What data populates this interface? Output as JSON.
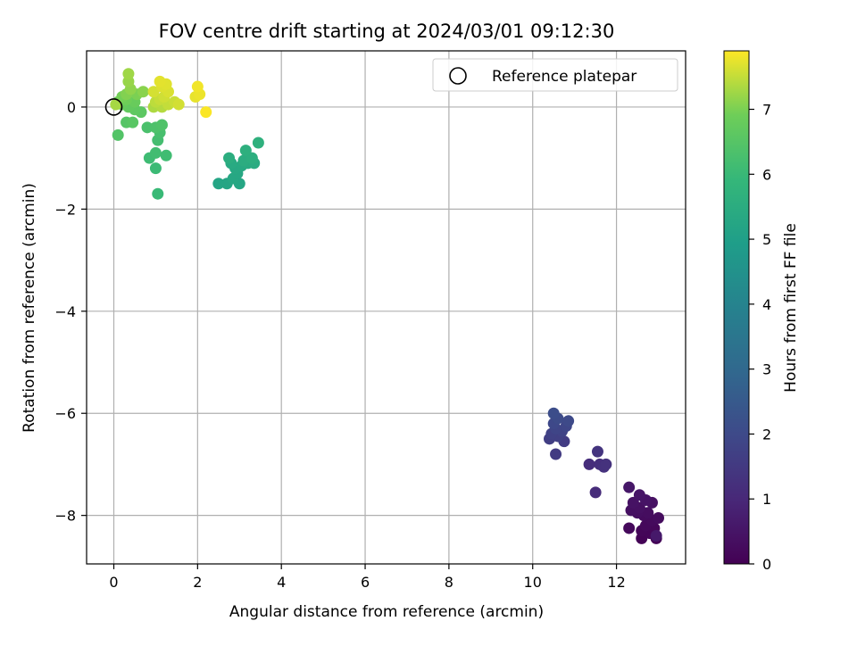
{
  "chart_data": {
    "type": "scatter",
    "title": "FOV centre drift starting at 2024/03/01 09:12:30",
    "xlabel": "Angular distance from reference (arcmin)",
    "ylabel": "Rotation from reference (arcmin)",
    "xlim": [
      -0.65,
      13.65
    ],
    "ylim": [
      -8.95,
      1.1
    ],
    "xticks": [
      0,
      2,
      4,
      6,
      8,
      10,
      12
    ],
    "yticks": [
      0,
      -2,
      -4,
      -6,
      -8
    ],
    "grid": true,
    "legend": {
      "placement": "top-right",
      "entries": [
        "Reference platepar"
      ]
    },
    "reference_point": {
      "x": 0,
      "y": 0,
      "label": "Reference platepar"
    },
    "colorbar": {
      "label": "Hours from first FF file",
      "range": [
        0,
        7.9
      ],
      "ticks": [
        0,
        1,
        2,
        3,
        4,
        5,
        6,
        7
      ],
      "colormap": "viridis"
    },
    "points": [
      {
        "x": 12.6,
        "y": -8.45,
        "h": 0.05
      },
      {
        "x": 12.95,
        "y": -8.45,
        "h": 0.08
      },
      {
        "x": 12.8,
        "y": -8.35,
        "h": 0.1
      },
      {
        "x": 12.6,
        "y": -8.3,
        "h": 0.12
      },
      {
        "x": 12.9,
        "y": -8.25,
        "h": 0.15
      },
      {
        "x": 12.7,
        "y": -8.2,
        "h": 0.18
      },
      {
        "x": 12.3,
        "y": -8.25,
        "h": 0.2
      },
      {
        "x": 12.85,
        "y": -8.1,
        "h": 0.22
      },
      {
        "x": 12.65,
        "y": -8.0,
        "h": 0.25
      },
      {
        "x": 13.0,
        "y": -8.05,
        "h": 0.28
      },
      {
        "x": 12.75,
        "y": -7.95,
        "h": 0.3
      },
      {
        "x": 12.5,
        "y": -7.95,
        "h": 0.33
      },
      {
        "x": 12.35,
        "y": -7.9,
        "h": 0.35
      },
      {
        "x": 12.55,
        "y": -7.85,
        "h": 0.38
      },
      {
        "x": 12.85,
        "y": -7.75,
        "h": 0.4
      },
      {
        "x": 12.4,
        "y": -7.75,
        "h": 0.43
      },
      {
        "x": 12.7,
        "y": -7.7,
        "h": 0.46
      },
      {
        "x": 12.55,
        "y": -7.6,
        "h": 0.5
      },
      {
        "x": 12.3,
        "y": -7.45,
        "h": 0.55
      },
      {
        "x": 12.95,
        "y": -8.4,
        "h": 0.6
      },
      {
        "x": 11.5,
        "y": -7.55,
        "h": 1.1
      },
      {
        "x": 11.35,
        "y": -7.0,
        "h": 1.15
      },
      {
        "x": 11.6,
        "y": -7.0,
        "h": 1.2
      },
      {
        "x": 11.7,
        "y": -7.05,
        "h": 1.25
      },
      {
        "x": 11.75,
        "y": -7.0,
        "h": 1.3
      },
      {
        "x": 11.55,
        "y": -6.75,
        "h": 1.35
      },
      {
        "x": 10.55,
        "y": -6.8,
        "h": 1.55
      },
      {
        "x": 10.75,
        "y": -6.55,
        "h": 1.6
      },
      {
        "x": 10.4,
        "y": -6.5,
        "h": 1.65
      },
      {
        "x": 10.6,
        "y": -6.45,
        "h": 1.7
      },
      {
        "x": 10.45,
        "y": -6.4,
        "h": 1.75
      },
      {
        "x": 10.7,
        "y": -6.35,
        "h": 1.8
      },
      {
        "x": 10.55,
        "y": -6.3,
        "h": 1.85
      },
      {
        "x": 10.8,
        "y": -6.25,
        "h": 1.9
      },
      {
        "x": 10.5,
        "y": -6.2,
        "h": 1.95
      },
      {
        "x": 10.85,
        "y": -6.15,
        "h": 2.0
      },
      {
        "x": 10.6,
        "y": -6.1,
        "h": 2.05
      },
      {
        "x": 10.5,
        "y": -6.0,
        "h": 2.1
      },
      {
        "x": 2.5,
        "y": -1.5,
        "h": 5.2
      },
      {
        "x": 2.7,
        "y": -1.5,
        "h": 5.22
      },
      {
        "x": 3.0,
        "y": -1.5,
        "h": 5.25
      },
      {
        "x": 2.85,
        "y": -1.4,
        "h": 5.28
      },
      {
        "x": 2.95,
        "y": -1.3,
        "h": 5.3
      },
      {
        "x": 2.9,
        "y": -1.2,
        "h": 5.33
      },
      {
        "x": 3.05,
        "y": -1.15,
        "h": 5.36
      },
      {
        "x": 2.8,
        "y": -1.1,
        "h": 5.4
      },
      {
        "x": 3.2,
        "y": -1.1,
        "h": 5.43
      },
      {
        "x": 3.35,
        "y": -1.1,
        "h": 5.46
      },
      {
        "x": 3.1,
        "y": -1.05,
        "h": 5.5
      },
      {
        "x": 2.75,
        "y": -1.0,
        "h": 5.53
      },
      {
        "x": 3.3,
        "y": -1.0,
        "h": 5.56
      },
      {
        "x": 3.15,
        "y": -0.85,
        "h": 5.6
      },
      {
        "x": 3.45,
        "y": -0.7,
        "h": 5.65
      },
      {
        "x": 1.05,
        "y": -1.7,
        "h": 6.0
      },
      {
        "x": 1.0,
        "y": -1.2,
        "h": 6.05
      },
      {
        "x": 0.85,
        "y": -1.0,
        "h": 6.1
      },
      {
        "x": 1.25,
        "y": -0.95,
        "h": 6.12
      },
      {
        "x": 1.0,
        "y": -0.9,
        "h": 6.15
      },
      {
        "x": 1.05,
        "y": -0.65,
        "h": 6.2
      },
      {
        "x": 1.1,
        "y": -0.5,
        "h": 6.25
      },
      {
        "x": 0.8,
        "y": -0.4,
        "h": 6.3
      },
      {
        "x": 1.0,
        "y": -0.4,
        "h": 6.35
      },
      {
        "x": 1.15,
        "y": -0.35,
        "h": 6.4
      },
      {
        "x": 0.1,
        "y": -0.55,
        "h": 6.45
      },
      {
        "x": 0.3,
        "y": -0.3,
        "h": 6.5
      },
      {
        "x": 0.45,
        "y": -0.3,
        "h": 6.55
      },
      {
        "x": 0.65,
        "y": -0.1,
        "h": 6.6
      },
      {
        "x": 0.5,
        "y": -0.05,
        "h": 6.65
      },
      {
        "x": 0.35,
        "y": 0.0,
        "h": 6.7
      },
      {
        "x": 0.2,
        "y": 0.05,
        "h": 6.75
      },
      {
        "x": 0.5,
        "y": 0.1,
        "h": 6.8
      },
      {
        "x": 0.1,
        "y": 0.1,
        "h": 6.85
      },
      {
        "x": 0.3,
        "y": 0.15,
        "h": 6.9
      },
      {
        "x": 0.2,
        "y": 0.2,
        "h": 6.95
      },
      {
        "x": 0.55,
        "y": 0.25,
        "h": 7.0
      },
      {
        "x": 0.3,
        "y": 0.25,
        "h": 7.05
      },
      {
        "x": 0.7,
        "y": 0.3,
        "h": 7.1
      },
      {
        "x": 0.4,
        "y": 0.35,
        "h": 7.15
      },
      {
        "x": 0.35,
        "y": 0.5,
        "h": 7.2
      },
      {
        "x": 0.35,
        "y": 0.65,
        "h": 7.25
      },
      {
        "x": 0.05,
        "y": 0.05,
        "h": 7.3
      },
      {
        "x": 0.95,
        "y": 0.0,
        "h": 7.35
      },
      {
        "x": 1.15,
        "y": 0.0,
        "h": 7.4
      },
      {
        "x": 1.0,
        "y": 0.1,
        "h": 7.45
      },
      {
        "x": 1.3,
        "y": 0.05,
        "h": 7.5
      },
      {
        "x": 1.1,
        "y": 0.15,
        "h": 7.52
      },
      {
        "x": 1.45,
        "y": 0.1,
        "h": 7.55
      },
      {
        "x": 1.2,
        "y": 0.2,
        "h": 7.58
      },
      {
        "x": 1.55,
        "y": 0.05,
        "h": 7.6
      },
      {
        "x": 0.95,
        "y": 0.3,
        "h": 7.62
      },
      {
        "x": 1.3,
        "y": 0.3,
        "h": 7.65
      },
      {
        "x": 1.15,
        "y": 0.4,
        "h": 7.68
      },
      {
        "x": 1.25,
        "y": 0.45,
        "h": 7.7
      },
      {
        "x": 1.1,
        "y": 0.5,
        "h": 7.72
      },
      {
        "x": 1.95,
        "y": 0.2,
        "h": 7.75
      },
      {
        "x": 2.05,
        "y": 0.25,
        "h": 7.78
      },
      {
        "x": 2.0,
        "y": 0.4,
        "h": 7.82
      },
      {
        "x": 2.2,
        "y": -0.1,
        "h": 7.88
      }
    ]
  }
}
